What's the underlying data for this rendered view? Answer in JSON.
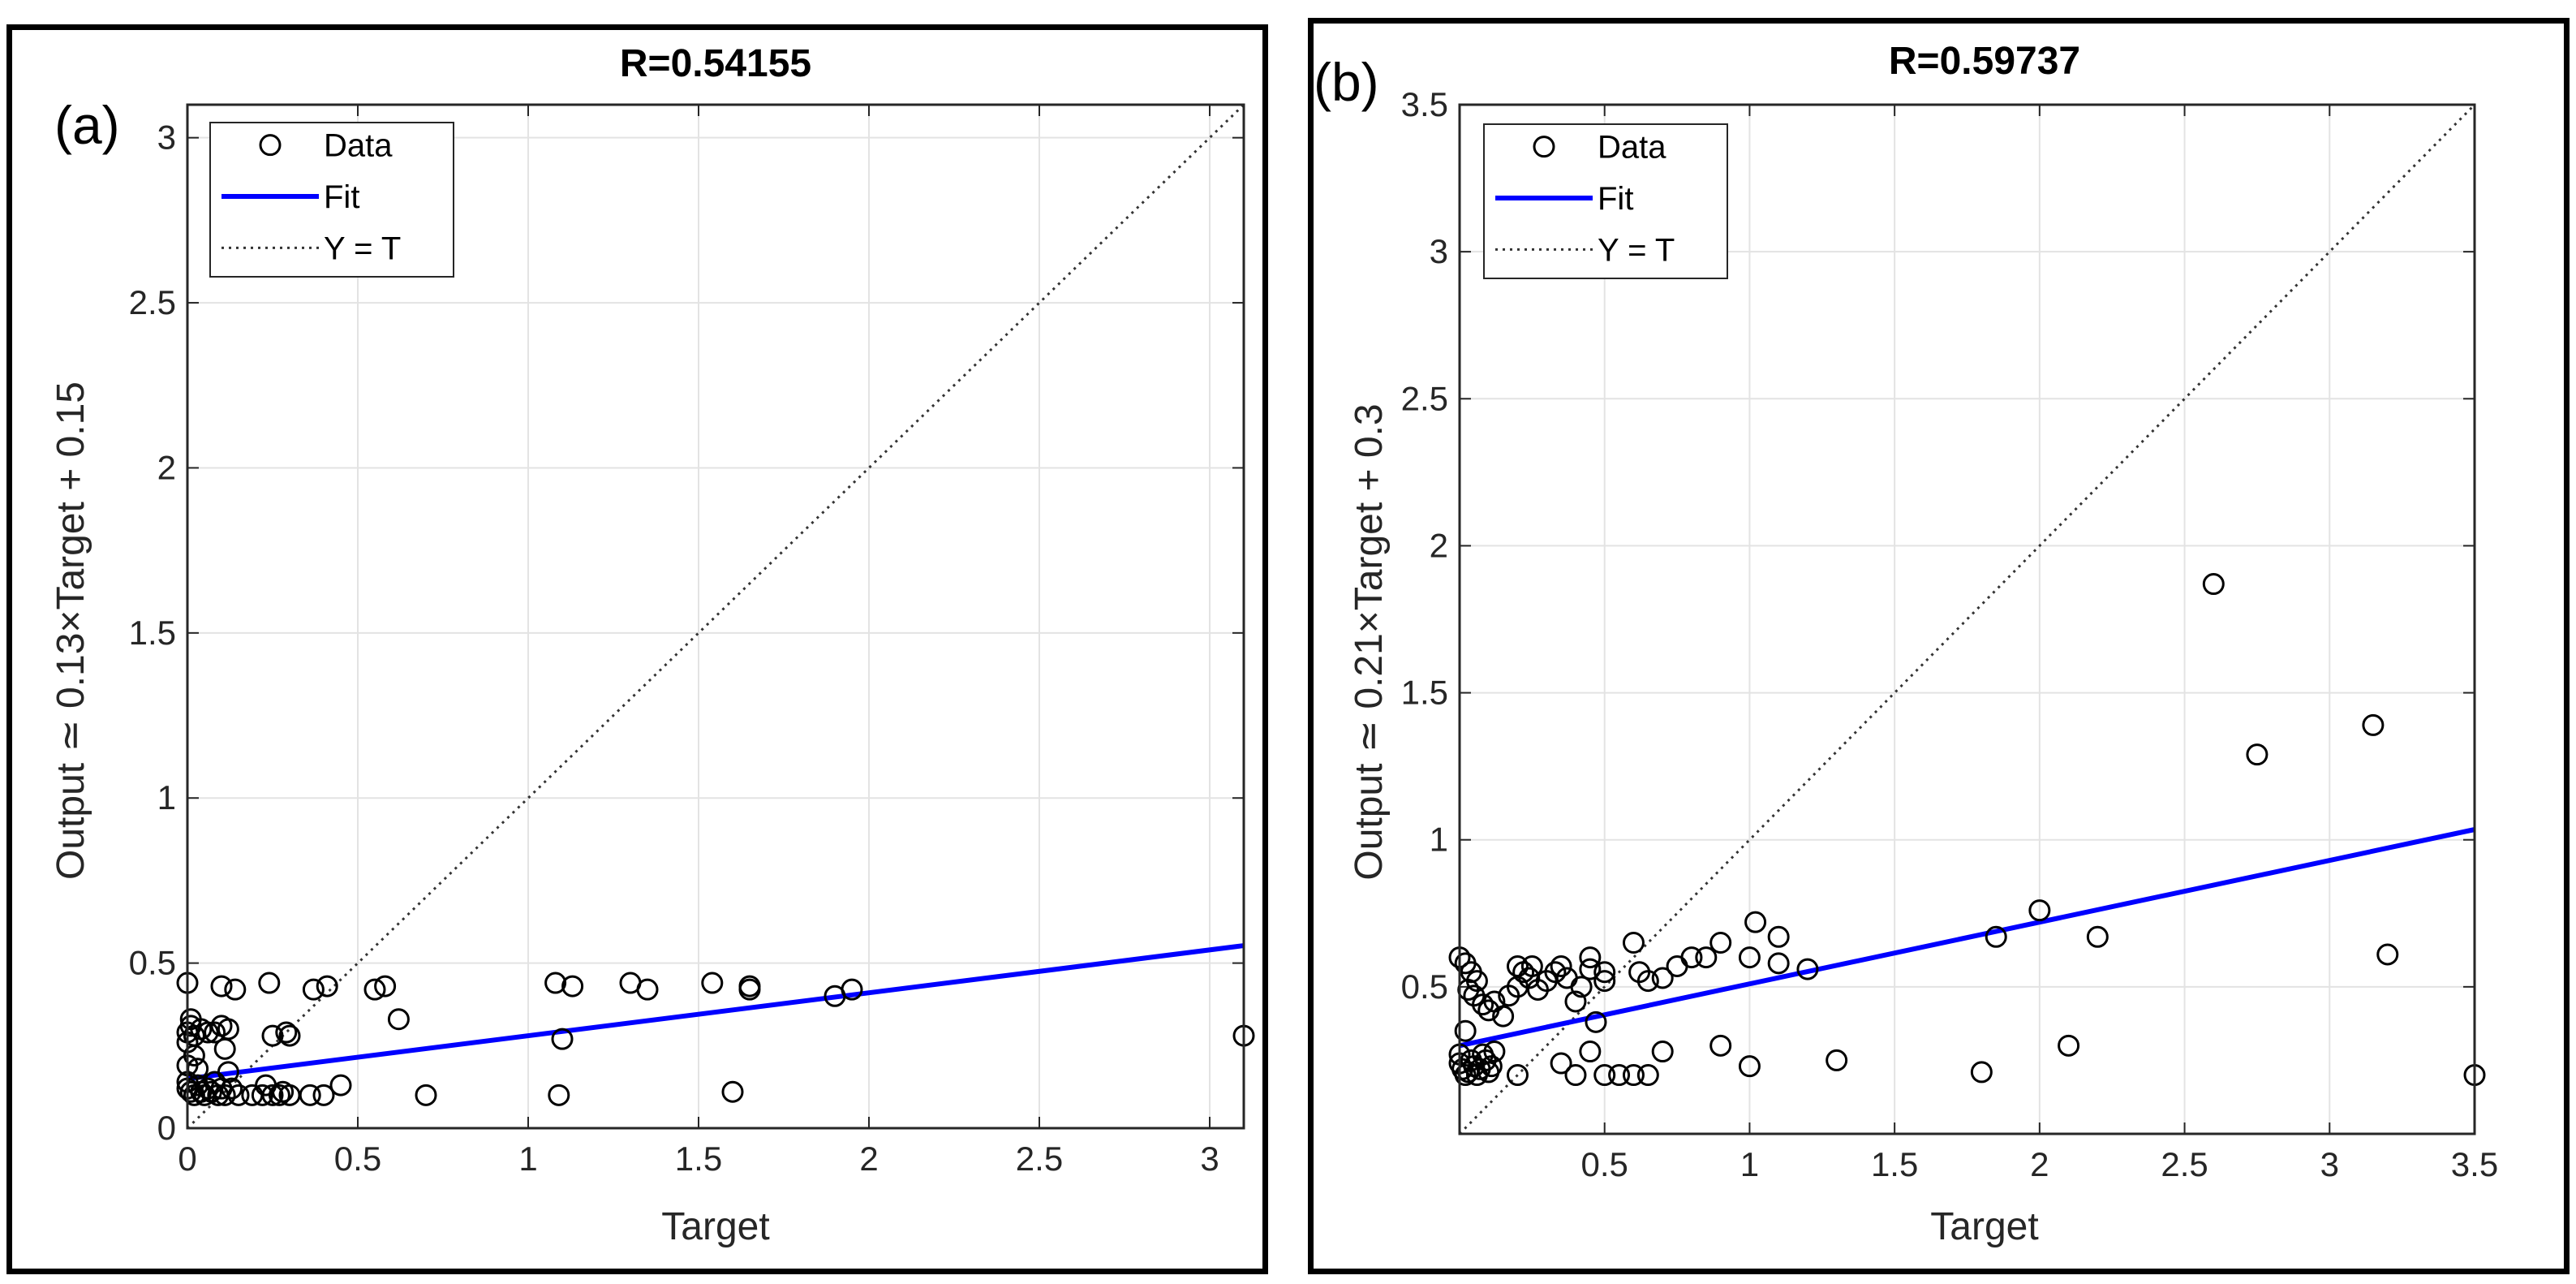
{
  "chart_data": [
    {
      "type": "scatter",
      "panel_label": "(a)",
      "title": "R=0.54155",
      "xlabel": "Target",
      "ylabel": "Output ≃ 0.13×Target + 0.15",
      "xlim": [
        0,
        3.1
      ],
      "ylim": [
        0,
        3.1
      ],
      "xticks": [
        0,
        0.5,
        1,
        1.5,
        2,
        2.5,
        3
      ],
      "xtick_labels": [
        "0",
        "0.5",
        "1",
        "1.5",
        "2",
        "2.5",
        "3"
      ],
      "yticks": [
        0,
        0.5,
        1,
        1.5,
        2,
        2.5,
        3
      ],
      "ytick_labels": [
        "0",
        "0.5",
        "1",
        "1.5",
        "2",
        "2.5",
        "3"
      ],
      "grid": true,
      "legend": {
        "position": "top-left",
        "entries": [
          "Data",
          "Fit",
          "Y = T"
        ]
      },
      "fit": {
        "slope": 0.13,
        "intercept": 0.15,
        "color": "#0000ff"
      },
      "identity_line": true,
      "points": [
        [
          0,
          0.44
        ],
        [
          0.01,
          0.33
        ],
        [
          0.01,
          0.31
        ],
        [
          0.0,
          0.29
        ],
        [
          0.0,
          0.26
        ],
        [
          0.02,
          0.28
        ],
        [
          0.04,
          0.3
        ],
        [
          0.06,
          0.29
        ],
        [
          0.08,
          0.29
        ],
        [
          0.1,
          0.31
        ],
        [
          0.12,
          0.3
        ],
        [
          0.14,
          0.42
        ],
        [
          0.1,
          0.43
        ],
        [
          0.0,
          0.19
        ],
        [
          0.0,
          0.14
        ],
        [
          0.0,
          0.12
        ],
        [
          0.01,
          0.11
        ],
        [
          0.02,
          0.1
        ],
        [
          0.03,
          0.13
        ],
        [
          0.04,
          0.11
        ],
        [
          0.05,
          0.1
        ],
        [
          0.06,
          0.12
        ],
        [
          0.07,
          0.11
        ],
        [
          0.08,
          0.14
        ],
        [
          0.09,
          0.1
        ],
        [
          0.1,
          0.12
        ],
        [
          0.11,
          0.1
        ],
        [
          0.12,
          0.17
        ],
        [
          0.13,
          0.12
        ],
        [
          0.15,
          0.1
        ],
        [
          0.11,
          0.24
        ],
        [
          0.02,
          0.22
        ],
        [
          0.03,
          0.18
        ],
        [
          0.19,
          0.1
        ],
        [
          0.22,
          0.1
        ],
        [
          0.23,
          0.13
        ],
        [
          0.25,
          0.1
        ],
        [
          0.27,
          0.1
        ],
        [
          0.28,
          0.11
        ],
        [
          0.3,
          0.1
        ],
        [
          0.24,
          0.44
        ],
        [
          0.25,
          0.28
        ],
        [
          0.29,
          0.29
        ],
        [
          0.3,
          0.28
        ],
        [
          0.37,
          0.42
        ],
        [
          0.41,
          0.43
        ],
        [
          0.36,
          0.1
        ],
        [
          0.4,
          0.1
        ],
        [
          0.45,
          0.13
        ],
        [
          0.55,
          0.42
        ],
        [
          0.58,
          0.43
        ],
        [
          0.62,
          0.33
        ],
        [
          0.7,
          0.1
        ],
        [
          1.08,
          0.44
        ],
        [
          1.13,
          0.43
        ],
        [
          1.1,
          0.27
        ],
        [
          1.09,
          0.1
        ],
        [
          1.3,
          0.44
        ],
        [
          1.35,
          0.42
        ],
        [
          1.54,
          0.44
        ],
        [
          1.65,
          0.43
        ],
        [
          1.65,
          0.42
        ],
        [
          1.6,
          0.11
        ],
        [
          1.9,
          0.4
        ],
        [
          1.95,
          0.42
        ],
        [
          3.1,
          0.28
        ]
      ]
    },
    {
      "type": "scatter",
      "panel_label": "(b)",
      "title": "R=0.59737",
      "xlabel": "Target",
      "ylabel": "Output ≃ 0.21×Target + 0.3",
      "xlim": [
        0,
        3.5
      ],
      "ylim": [
        0,
        3.5
      ],
      "xticks": [
        0.5,
        1,
        1.5,
        2,
        2.5,
        3,
        3.5
      ],
      "xtick_labels": [
        "0.5",
        "1",
        "1.5",
        "2",
        "2.5",
        "3",
        "3.5"
      ],
      "yticks": [
        0.5,
        1,
        1.5,
        2,
        2.5,
        3,
        3.5
      ],
      "ytick_labels": [
        "0.5",
        "1",
        "1.5",
        "2",
        "2.5",
        "3",
        "3.5"
      ],
      "grid": true,
      "legend": {
        "position": "top-left",
        "entries": [
          "Data",
          "Fit",
          "Y = T"
        ]
      },
      "fit": {
        "slope": 0.21,
        "intercept": 0.3,
        "color": "#0000ff"
      },
      "identity_line": true,
      "points": [
        [
          0.0,
          0.6
        ],
        [
          0.02,
          0.58
        ],
        [
          0.04,
          0.55
        ],
        [
          0.06,
          0.52
        ],
        [
          0.05,
          0.47
        ],
        [
          0.08,
          0.44
        ],
        [
          0.1,
          0.42
        ],
        [
          0.12,
          0.45
        ],
        [
          0.03,
          0.49
        ],
        [
          0.15,
          0.4
        ],
        [
          0.17,
          0.47
        ],
        [
          0.2,
          0.5
        ],
        [
          0.2,
          0.57
        ],
        [
          0.22,
          0.55
        ],
        [
          0.24,
          0.53
        ],
        [
          0.25,
          0.57
        ],
        [
          0.27,
          0.49
        ],
        [
          0.3,
          0.52
        ],
        [
          0.33,
          0.55
        ],
        [
          0.35,
          0.57
        ],
        [
          0.37,
          0.53
        ],
        [
          0.4,
          0.45
        ],
        [
          0.42,
          0.5
        ],
        [
          0.45,
          0.56
        ],
        [
          0.45,
          0.6
        ],
        [
          0.5,
          0.52
        ],
        [
          0.5,
          0.55
        ],
        [
          0.6,
          0.65
        ],
        [
          0.62,
          0.55
        ],
        [
          0.65,
          0.52
        ],
        [
          0.7,
          0.53
        ],
        [
          0.75,
          0.57
        ],
        [
          0.8,
          0.6
        ],
        [
          0.85,
          0.6
        ],
        [
          0.9,
          0.65
        ],
        [
          1.0,
          0.6
        ],
        [
          1.02,
          0.72
        ],
        [
          1.1,
          0.67
        ],
        [
          1.1,
          0.58
        ],
        [
          1.2,
          0.56
        ],
        [
          0.02,
          0.35
        ],
        [
          0.0,
          0.27
        ],
        [
          0.0,
          0.24
        ],
        [
          0.01,
          0.22
        ],
        [
          0.02,
          0.2
        ],
        [
          0.03,
          0.21
        ],
        [
          0.04,
          0.25
        ],
        [
          0.05,
          0.23
        ],
        [
          0.06,
          0.2
        ],
        [
          0.07,
          0.22
        ],
        [
          0.08,
          0.27
        ],
        [
          0.09,
          0.25
        ],
        [
          0.1,
          0.21
        ],
        [
          0.11,
          0.23
        ],
        [
          0.12,
          0.28
        ],
        [
          0.2,
          0.2
        ],
        [
          0.35,
          0.24
        ],
        [
          0.4,
          0.2
        ],
        [
          0.45,
          0.28
        ],
        [
          0.47,
          0.38
        ],
        [
          0.5,
          0.2
        ],
        [
          0.55,
          0.2
        ],
        [
          0.6,
          0.2
        ],
        [
          0.65,
          0.2
        ],
        [
          0.7,
          0.28
        ],
        [
          0.9,
          0.3
        ],
        [
          1.0,
          0.23
        ],
        [
          1.3,
          0.25
        ],
        [
          1.8,
          0.21
        ],
        [
          1.85,
          0.67
        ],
        [
          2.0,
          0.76
        ],
        [
          2.1,
          0.3
        ],
        [
          2.2,
          0.67
        ],
        [
          2.6,
          1.87
        ],
        [
          2.75,
          1.29
        ],
        [
          3.15,
          1.39
        ],
        [
          3.2,
          0.61
        ],
        [
          3.5,
          0.2
        ]
      ]
    }
  ]
}
